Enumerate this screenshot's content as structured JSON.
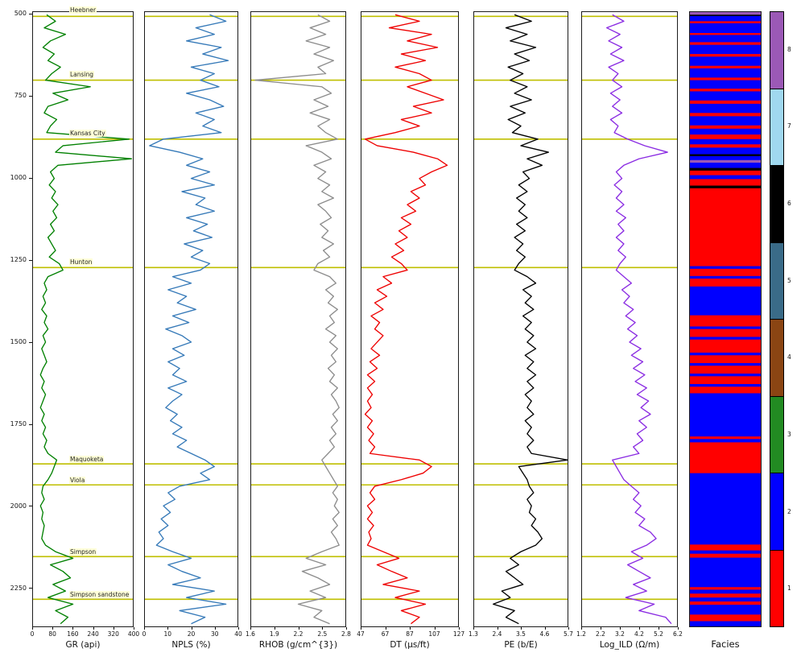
{
  "figure": {
    "facies_label": "Facies"
  },
  "depth_axis": {
    "ticks": [
      500,
      750,
      1000,
      1250,
      1500,
      1750,
      2000,
      2250
    ]
  },
  "formation_tops": {
    "color": "#bfbf00",
    "items": [
      {
        "name": "Heebner",
        "depth": 505
      },
      {
        "name": "Lansing",
        "depth": 700
      },
      {
        "name": "Kansas City",
        "depth": 880
      },
      {
        "name": "Hunton",
        "depth": 1272
      },
      {
        "name": "Maquoketa",
        "depth": 1872
      },
      {
        "name": "Viola",
        "depth": 1936
      },
      {
        "name": "Simpson",
        "depth": 2155
      },
      {
        "name": "Simpson sandstone",
        "depth": 2285
      }
    ]
  },
  "chart_data": {
    "type": "line",
    "depth_range": [
      492,
      2368
    ],
    "depths": [
      500,
      520,
      540,
      560,
      580,
      600,
      620,
      640,
      660,
      680,
      700,
      720,
      740,
      760,
      780,
      800,
      820,
      840,
      860,
      880,
      900,
      920,
      940,
      960,
      980,
      1000,
      1020,
      1040,
      1060,
      1080,
      1100,
      1120,
      1140,
      1160,
      1180,
      1200,
      1220,
      1240,
      1260,
      1280,
      1300,
      1320,
      1340,
      1360,
      1380,
      1400,
      1420,
      1440,
      1460,
      1480,
      1500,
      1520,
      1540,
      1560,
      1580,
      1600,
      1620,
      1640,
      1660,
      1680,
      1700,
      1720,
      1740,
      1760,
      1780,
      1800,
      1820,
      1840,
      1860,
      1880,
      1900,
      1920,
      1940,
      1960,
      1980,
      2000,
      2020,
      2040,
      2060,
      2080,
      2100,
      2120,
      2140,
      2160,
      2180,
      2200,
      2220,
      2240,
      2260,
      2280,
      2300,
      2320,
      2340,
      2360
    ],
    "tracks": [
      {
        "name": "GR",
        "xlabel": "GR (api)",
        "color": "#008000",
        "xlim": [
          0,
          400
        ],
        "ticks": [
          0,
          80,
          160,
          240,
          320,
          400
        ],
        "values": [
          55,
          90,
          45,
          130,
          70,
          40,
          85,
          60,
          110,
          75,
          50,
          230,
          80,
          140,
          60,
          45,
          95,
          70,
          55,
          385,
          120,
          90,
          395,
          100,
          70,
          85,
          65,
          90,
          75,
          100,
          80,
          95,
          70,
          85,
          60,
          75,
          90,
          65,
          105,
          120,
          60,
          45,
          55,
          40,
          50,
          35,
          55,
          45,
          60,
          40,
          50,
          35,
          45,
          55,
          40,
          30,
          45,
          35,
          50,
          40,
          30,
          45,
          35,
          50,
          40,
          55,
          45,
          60,
          95,
          85,
          75,
          60,
          40,
          35,
          45,
          30,
          40,
          35,
          45,
          40,
          35,
          50,
          90,
          160,
          70,
          120,
          150,
          80,
          130,
          60,
          160,
          90,
          140,
          110
        ]
      },
      {
        "name": "NPLS",
        "xlabel": "NPLS (%)",
        "color": "#3579b8",
        "xlim": [
          0,
          40
        ],
        "ticks": [
          0,
          10,
          20,
          30,
          40
        ],
        "values": [
          28,
          35,
          22,
          30,
          18,
          33,
          25,
          36,
          20,
          30,
          24,
          32,
          18,
          28,
          34,
          22,
          30,
          25,
          33,
          8,
          2,
          15,
          25,
          18,
          28,
          20,
          30,
          16,
          26,
          22,
          30,
          18,
          27,
          21,
          29,
          17,
          25,
          20,
          28,
          24,
          12,
          20,
          10,
          18,
          14,
          22,
          12,
          19,
          9,
          16,
          20,
          12,
          17,
          10,
          15,
          12,
          18,
          10,
          16,
          12,
          9,
          14,
          11,
          16,
          12,
          18,
          14,
          20,
          26,
          30,
          24,
          28,
          15,
          10,
          13,
          8,
          11,
          7,
          10,
          6,
          8,
          5,
          12,
          20,
          10,
          16,
          24,
          12,
          30,
          18,
          35,
          15,
          26,
          20
        ]
      },
      {
        "name": "RHOB",
        "xlabel": "RHOB (g/cm^{3})",
        "color": "#8c8c8c",
        "xlim": [
          1.6,
          2.8
        ],
        "ticks": [
          1.6,
          1.9,
          2.2,
          2.5,
          2.8
        ],
        "values": [
          2.45,
          2.6,
          2.35,
          2.55,
          2.3,
          2.6,
          2.4,
          2.65,
          2.45,
          2.55,
          1.65,
          2.5,
          2.62,
          2.4,
          2.58,
          2.35,
          2.6,
          2.45,
          2.55,
          2.7,
          2.3,
          2.5,
          2.62,
          2.4,
          2.55,
          2.45,
          2.6,
          2.5,
          2.65,
          2.45,
          2.55,
          2.62,
          2.48,
          2.58,
          2.5,
          2.65,
          2.52,
          2.6,
          2.45,
          2.4,
          2.6,
          2.68,
          2.55,
          2.65,
          2.58,
          2.7,
          2.6,
          2.66,
          2.55,
          2.68,
          2.6,
          2.7,
          2.62,
          2.68,
          2.58,
          2.66,
          2.6,
          2.7,
          2.62,
          2.68,
          2.72,
          2.64,
          2.7,
          2.62,
          2.68,
          2.6,
          2.66,
          2.58,
          2.5,
          2.55,
          2.6,
          2.65,
          2.7,
          2.64,
          2.7,
          2.66,
          2.72,
          2.64,
          2.7,
          2.62,
          2.68,
          2.72,
          2.5,
          2.3,
          2.55,
          2.25,
          2.45,
          2.6,
          2.35,
          2.55,
          2.2,
          2.5,
          2.4,
          2.6
        ]
      },
      {
        "name": "DT",
        "xlabel": "DT (µs/ft)",
        "color": "#ee0000",
        "xlim": [
          47,
          127
        ],
        "ticks": [
          47,
          67,
          87,
          107,
          127
        ],
        "values": [
          75,
          95,
          70,
          105,
          85,
          110,
          80,
          100,
          75,
          95,
          105,
          85,
          100,
          115,
          90,
          105,
          80,
          95,
          75,
          50,
          60,
          90,
          110,
          118,
          105,
          95,
          100,
          88,
          95,
          85,
          92,
          80,
          88,
          78,
          85,
          75,
          82,
          72,
          80,
          85,
          65,
          72,
          60,
          68,
          58,
          65,
          55,
          62,
          58,
          65,
          60,
          55,
          62,
          54,
          60,
          52,
          58,
          52,
          56,
          52,
          55,
          50,
          56,
          52,
          57,
          53,
          58,
          54,
          95,
          105,
          98,
          80,
          58,
          54,
          58,
          52,
          56,
          52,
          57,
          53,
          55,
          52,
          65,
          78,
          60,
          72,
          85,
          65,
          95,
          75,
          100,
          80,
          95,
          88
        ]
      },
      {
        "name": "PE",
        "xlabel": "PE (b/E)",
        "color": "#000000",
        "xlim": [
          1.3,
          5.7
        ],
        "ticks": [
          1.3,
          2.4,
          3.5,
          4.6,
          5.7
        ],
        "values": [
          3.2,
          4.0,
          2.8,
          3.8,
          3.0,
          4.2,
          3.2,
          3.9,
          2.9,
          3.6,
          3.0,
          3.8,
          3.2,
          4.0,
          3.0,
          3.7,
          2.9,
          3.5,
          3.1,
          4.3,
          3.5,
          4.8,
          3.8,
          4.5,
          3.6,
          3.9,
          3.4,
          3.8,
          3.3,
          3.7,
          3.4,
          3.8,
          3.3,
          3.7,
          3.2,
          3.6,
          3.3,
          3.7,
          3.4,
          3.2,
          3.8,
          4.2,
          3.6,
          4.0,
          3.7,
          4.1,
          3.6,
          4.0,
          3.7,
          4.1,
          3.8,
          4.2,
          3.7,
          4.1,
          3.8,
          4.2,
          3.8,
          4.1,
          3.7,
          4.0,
          3.8,
          4.1,
          3.7,
          4.0,
          3.8,
          4.1,
          3.8,
          4.0,
          5.7,
          3.4,
          3.6,
          3.8,
          3.9,
          4.1,
          3.8,
          4.0,
          3.9,
          4.2,
          4.0,
          4.3,
          4.5,
          4.2,
          3.5,
          3.0,
          3.4,
          2.8,
          3.2,
          3.6,
          2.6,
          3.0,
          2.2,
          3.2,
          2.8,
          3.4
        ]
      },
      {
        "name": "Log_ILD",
        "xlabel": "Log_ILD (Ω/m)",
        "color": "#8a2be2",
        "xlim": [
          1.2,
          6.2
        ],
        "ticks": [
          1.2,
          2.2,
          3.2,
          4.2,
          5.2,
          6.2
        ],
        "values": [
          2.8,
          3.4,
          2.5,
          3.2,
          2.6,
          3.3,
          2.7,
          3.4,
          2.6,
          3.1,
          2.8,
          3.3,
          2.7,
          3.2,
          2.8,
          3.3,
          2.7,
          3.1,
          2.9,
          3.6,
          4.5,
          5.7,
          4.2,
          3.4,
          3.0,
          3.3,
          2.9,
          3.3,
          3.0,
          3.4,
          3.0,
          3.5,
          3.1,
          3.4,
          3.0,
          3.4,
          3.1,
          3.5,
          3.2,
          3.0,
          3.4,
          3.8,
          3.3,
          3.7,
          3.4,
          3.9,
          3.5,
          4.0,
          3.6,
          4.1,
          3.7,
          4.3,
          3.8,
          4.4,
          3.9,
          4.5,
          4.0,
          4.6,
          4.1,
          4.7,
          4.3,
          4.8,
          4.2,
          4.6,
          4.1,
          4.4,
          3.9,
          4.2,
          2.8,
          3.0,
          3.2,
          3.4,
          3.8,
          4.2,
          3.9,
          4.3,
          4.0,
          4.5,
          4.2,
          4.8,
          5.1,
          4.6,
          3.8,
          4.4,
          3.6,
          4.2,
          4.8,
          3.9,
          4.6,
          3.5,
          5.0,
          4.2,
          5.6,
          5.9
        ]
      }
    ],
    "facies": {
      "label": "Facies",
      "classes": [
        {
          "id": 1,
          "color": "#ff0000"
        },
        {
          "id": 2,
          "color": "#0000ff"
        },
        {
          "id": 3,
          "color": "#228b22"
        },
        {
          "id": 4,
          "color": "#8b4513"
        },
        {
          "id": 5,
          "color": "#3a6b88"
        },
        {
          "id": 6,
          "color": "#000000"
        },
        {
          "id": 7,
          "color": "#a0d8ef"
        },
        {
          "id": 8,
          "color": "#9b59b6"
        }
      ],
      "intervals": [
        [
          492,
          500,
          8
        ],
        [
          500,
          504,
          6
        ],
        [
          504,
          520,
          2
        ],
        [
          520,
          526,
          1
        ],
        [
          526,
          556,
          2
        ],
        [
          556,
          562,
          1
        ],
        [
          562,
          584,
          2
        ],
        [
          584,
          592,
          1
        ],
        [
          592,
          620,
          2
        ],
        [
          620,
          628,
          1
        ],
        [
          628,
          656,
          2
        ],
        [
          656,
          664,
          1
        ],
        [
          664,
          692,
          2
        ],
        [
          692,
          700,
          1
        ],
        [
          700,
          726,
          2
        ],
        [
          726,
          734,
          1
        ],
        [
          734,
          762,
          2
        ],
        [
          762,
          772,
          1
        ],
        [
          772,
          800,
          2
        ],
        [
          800,
          810,
          1
        ],
        [
          810,
          838,
          2
        ],
        [
          838,
          848,
          1
        ],
        [
          848,
          866,
          2
        ],
        [
          866,
          880,
          1
        ],
        [
          880,
          896,
          2
        ],
        [
          896,
          906,
          1
        ],
        [
          906,
          926,
          2
        ],
        [
          926,
          932,
          6
        ],
        [
          932,
          944,
          2
        ],
        [
          944,
          952,
          8
        ],
        [
          952,
          968,
          2
        ],
        [
          968,
          976,
          6
        ],
        [
          976,
          990,
          1
        ],
        [
          990,
          1002,
          2
        ],
        [
          1002,
          1022,
          1
        ],
        [
          1022,
          1030,
          6
        ],
        [
          1030,
          1268,
          1
        ],
        [
          1268,
          1276,
          2
        ],
        [
          1276,
          1298,
          1
        ],
        [
          1298,
          1306,
          2
        ],
        [
          1306,
          1330,
          1
        ],
        [
          1330,
          1418,
          2
        ],
        [
          1418,
          1452,
          1
        ],
        [
          1452,
          1460,
          2
        ],
        [
          1460,
          1484,
          1
        ],
        [
          1484,
          1492,
          2
        ],
        [
          1492,
          1532,
          1
        ],
        [
          1532,
          1540,
          2
        ],
        [
          1540,
          1564,
          1
        ],
        [
          1564,
          1572,
          2
        ],
        [
          1572,
          1596,
          1
        ],
        [
          1596,
          1604,
          2
        ],
        [
          1604,
          1628,
          1
        ],
        [
          1628,
          1636,
          2
        ],
        [
          1636,
          1656,
          1
        ],
        [
          1656,
          1788,
          2
        ],
        [
          1788,
          1796,
          1
        ],
        [
          1796,
          1806,
          2
        ],
        [
          1806,
          1900,
          1
        ],
        [
          1900,
          2118,
          2
        ],
        [
          2118,
          2136,
          1
        ],
        [
          2136,
          2146,
          2
        ],
        [
          2146,
          2158,
          1
        ],
        [
          2158,
          2248,
          2
        ],
        [
          2248,
          2256,
          1
        ],
        [
          2256,
          2268,
          2
        ],
        [
          2268,
          2280,
          1
        ],
        [
          2280,
          2292,
          2
        ],
        [
          2292,
          2302,
          1
        ],
        [
          2302,
          2332,
          2
        ],
        [
          2332,
          2352,
          1
        ],
        [
          2352,
          2368,
          2
        ]
      ]
    }
  }
}
